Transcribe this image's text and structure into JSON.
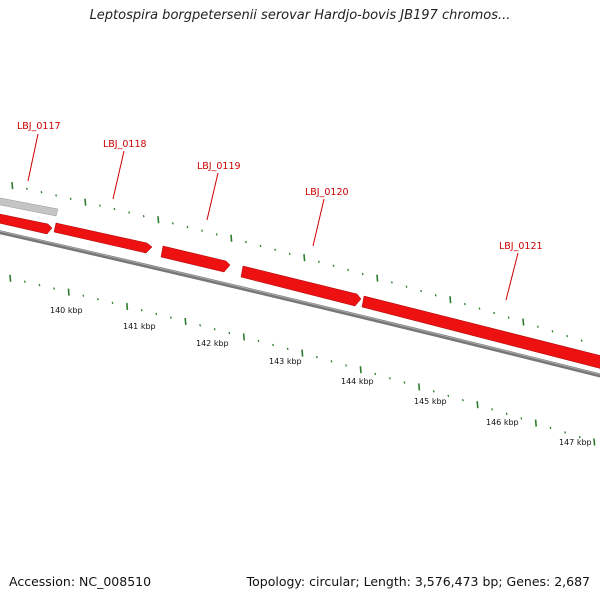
{
  "title": "Leptospira borgpetersenii serovar Hardjo-bovis JB197 chromos...",
  "accession": "Accession: NC_008510",
  "topology": "Topology: circular; Length: 3,576,473 bp; Genes: 2,687",
  "genes": [
    {
      "label": "LBJ_0117",
      "strand": "plus",
      "status": "gray"
    },
    {
      "label": "LBJ_0118",
      "strand": "minus",
      "status": "red"
    },
    {
      "label": "LBJ_0119",
      "strand": "minus",
      "status": "red"
    },
    {
      "label": "LBJ_0120",
      "strand": "minus",
      "status": "red"
    },
    {
      "label": "LBJ_0121",
      "strand": "minus",
      "status": "red"
    }
  ],
  "ticks": [
    "140 kbp",
    "141 kbp",
    "142 kbp",
    "143 kbp",
    "144 kbp",
    "145 kbp",
    "146 kbp",
    "147 kbp"
  ],
  "colors": {
    "gene": "#ee1111",
    "gene_dark": "#aa0000",
    "gray_gene": "#c4c4c4",
    "backbone": "#777777",
    "tick": "#2e7d2e",
    "label": "#cc0000"
  }
}
